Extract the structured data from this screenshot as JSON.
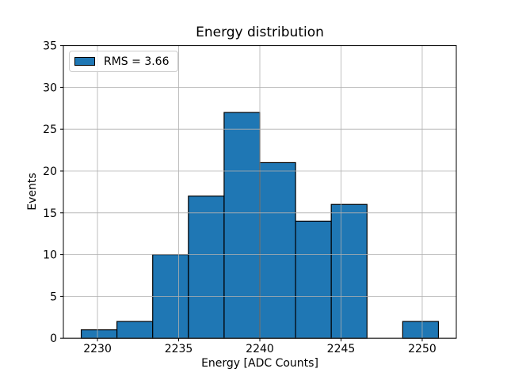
{
  "chart_data": {
    "type": "bar",
    "subtype": "histogram",
    "title": "Energy distribution",
    "xlabel": "Energy [ADC Counts]",
    "ylabel": "Events",
    "bin_edges": [
      2229.0,
      2231.2,
      2233.4,
      2235.6,
      2237.8,
      2240.0,
      2242.2,
      2244.4,
      2246.6,
      2248.8,
      2251.0
    ],
    "counts": [
      1,
      2,
      10,
      17,
      27,
      21,
      14,
      16,
      0,
      2
    ],
    "xlim": [
      2227.9,
      2252.1
    ],
    "ylim": [
      0,
      35
    ],
    "xticks": [
      2230,
      2235,
      2240,
      2245,
      2250
    ],
    "yticks": [
      0,
      5,
      10,
      15,
      20,
      25,
      30,
      35
    ],
    "grid": true,
    "grid_above_bars": true,
    "legend": {
      "label": "RMS = 3.66",
      "position": "upper left"
    },
    "colors": {
      "bar_fill": "#1f77b4",
      "bar_edge": "#000000",
      "grid": "#b0b0b0",
      "spine": "#000000",
      "tick_text": "#000000",
      "background": "#ffffff",
      "legend_border": "#cccccc"
    }
  }
}
